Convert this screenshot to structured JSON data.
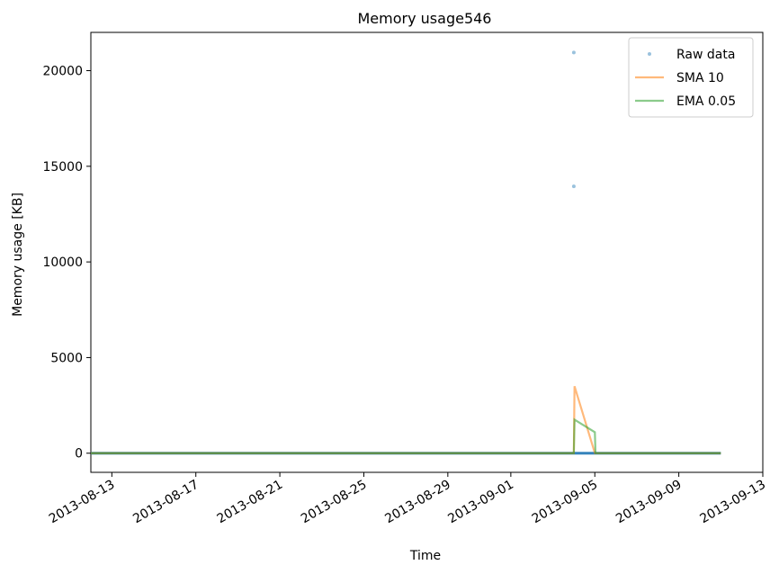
{
  "chart_data": {
    "type": "line",
    "title": "Memory usage546",
    "xlabel": "Time",
    "ylabel": "Memory usage [KB]",
    "x_axis_type": "date",
    "xlim": [
      "2013-08-12",
      "2013-09-13"
    ],
    "ylim": [
      -1000,
      22000
    ],
    "yticks": [
      0,
      5000,
      10000,
      15000,
      20000
    ],
    "xticks": [
      "2013-08-13",
      "2013-08-17",
      "2013-08-21",
      "2013-08-25",
      "2013-08-29",
      "2013-09-01",
      "2013-09-05",
      "2013-09-09",
      "2013-09-13"
    ],
    "grid": false,
    "legend_position": "top-right",
    "series": [
      {
        "name": "Raw data",
        "style": "points",
        "color": "#1f77b4",
        "x": [
          "2013-08-12",
          "2013-08-20",
          "2013-08-28",
          "2013-09-03",
          "2013-09-04",
          "2013-09-04",
          "2013-09-04",
          "2013-09-05",
          "2013-09-11"
        ],
        "values": [
          0,
          0,
          0,
          0,
          20950,
          13950,
          0,
          0,
          0
        ]
      },
      {
        "name": "SMA 10",
        "style": "line",
        "color": "#ff7f0e",
        "x": [
          "2013-08-12",
          "2013-09-04",
          "2013-09-04",
          "2013-09-04",
          "2013-09-05",
          "2013-09-11"
        ],
        "values": [
          0,
          0,
          3500,
          3500,
          0,
          0
        ]
      },
      {
        "name": "EMA 0.05",
        "style": "line",
        "color": "#2ca02c",
        "x": [
          "2013-08-12",
          "2013-09-04",
          "2013-09-04",
          "2013-09-05",
          "2013-09-05",
          "2013-09-11"
        ],
        "values": [
          0,
          0,
          1750,
          1100,
          0,
          0
        ]
      }
    ]
  }
}
